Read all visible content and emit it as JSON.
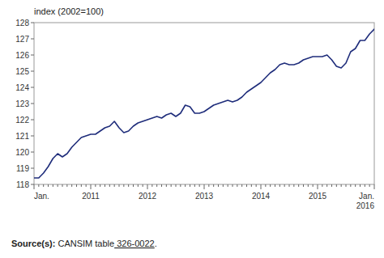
{
  "chart_data": {
    "type": "line",
    "y_label": "index (2002=100)",
    "categories": [
      "Jan.",
      null,
      null,
      null,
      null,
      null,
      null,
      null,
      null,
      null,
      null,
      null,
      "2011",
      null,
      null,
      null,
      null,
      null,
      null,
      null,
      null,
      null,
      null,
      null,
      "2012",
      null,
      null,
      null,
      null,
      null,
      null,
      null,
      null,
      null,
      null,
      null,
      "2013",
      null,
      null,
      null,
      null,
      null,
      null,
      null,
      null,
      null,
      null,
      null,
      "2014",
      null,
      null,
      null,
      null,
      null,
      null,
      null,
      null,
      null,
      null,
      null,
      "2015",
      null,
      null,
      null,
      null,
      null,
      null,
      null,
      null,
      null,
      null,
      null,
      "Jan.\n2016"
    ],
    "values": [
      118.4,
      118.4,
      118.7,
      119.1,
      119.6,
      119.9,
      119.7,
      119.9,
      120.3,
      120.6,
      120.9,
      121.0,
      121.1,
      121.1,
      121.3,
      121.5,
      121.6,
      121.9,
      121.5,
      121.2,
      121.3,
      121.6,
      121.8,
      121.9,
      122.0,
      122.1,
      122.2,
      122.1,
      122.3,
      122.4,
      122.2,
      122.4,
      122.9,
      122.8,
      122.4,
      122.4,
      122.5,
      122.7,
      122.9,
      123.0,
      123.1,
      123.2,
      123.1,
      123.2,
      123.4,
      123.7,
      123.9,
      124.1,
      124.3,
      124.6,
      124.9,
      125.1,
      125.4,
      125.5,
      125.4,
      125.4,
      125.5,
      125.7,
      125.8,
      125.9,
      125.9,
      125.9,
      126.0,
      125.7,
      125.3,
      125.2,
      125.5,
      126.2,
      126.4,
      126.9,
      126.9,
      127.3,
      127.6
    ],
    "color": "#1f2d7b",
    "ylim": [
      118,
      128
    ],
    "yticks": [
      118,
      119,
      120,
      121,
      122,
      123,
      124,
      125,
      126,
      127,
      128
    ],
    "grid": false,
    "annotations": [
      "Source(s):",
      "CANSIM table",
      "326-0022",
      "."
    ]
  }
}
